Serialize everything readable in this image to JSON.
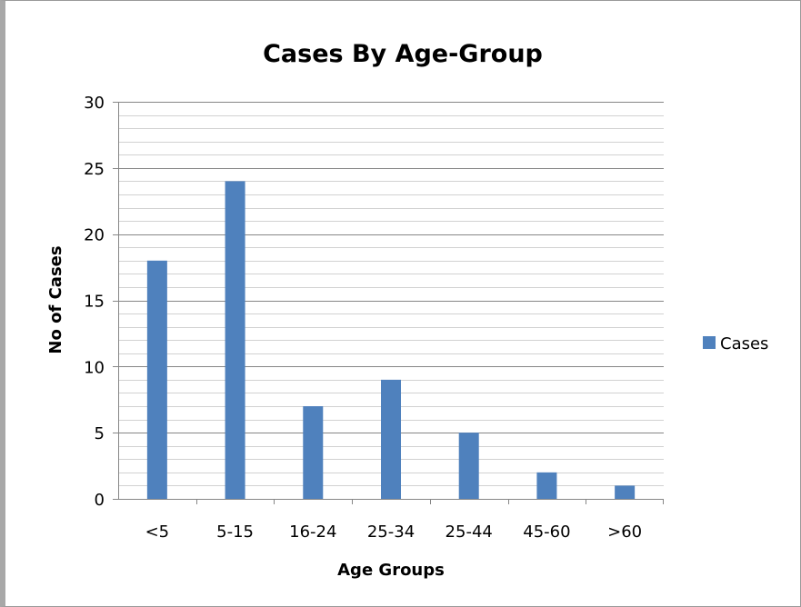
{
  "chart_data": {
    "type": "bar",
    "title": "Cases By Age-Group",
    "xlabel": "Age Groups",
    "ylabel": "No of Cases",
    "categories": [
      "<5",
      "5-15",
      "16-24",
      "25-34",
      "25-44",
      "45-60",
      ">60"
    ],
    "series": [
      {
        "name": "Cases",
        "values": [
          18,
          24,
          7,
          9,
          5,
          2,
          1
        ]
      }
    ],
    "ylim": [
      0,
      30
    ],
    "yticks": [
      "0",
      "5",
      "10",
      "15",
      "20",
      "25",
      "30"
    ],
    "grid": true,
    "legend_position": "right",
    "colors": {
      "bar": "#4F81BD",
      "grid": "#868686",
      "axis": "#868686"
    }
  }
}
